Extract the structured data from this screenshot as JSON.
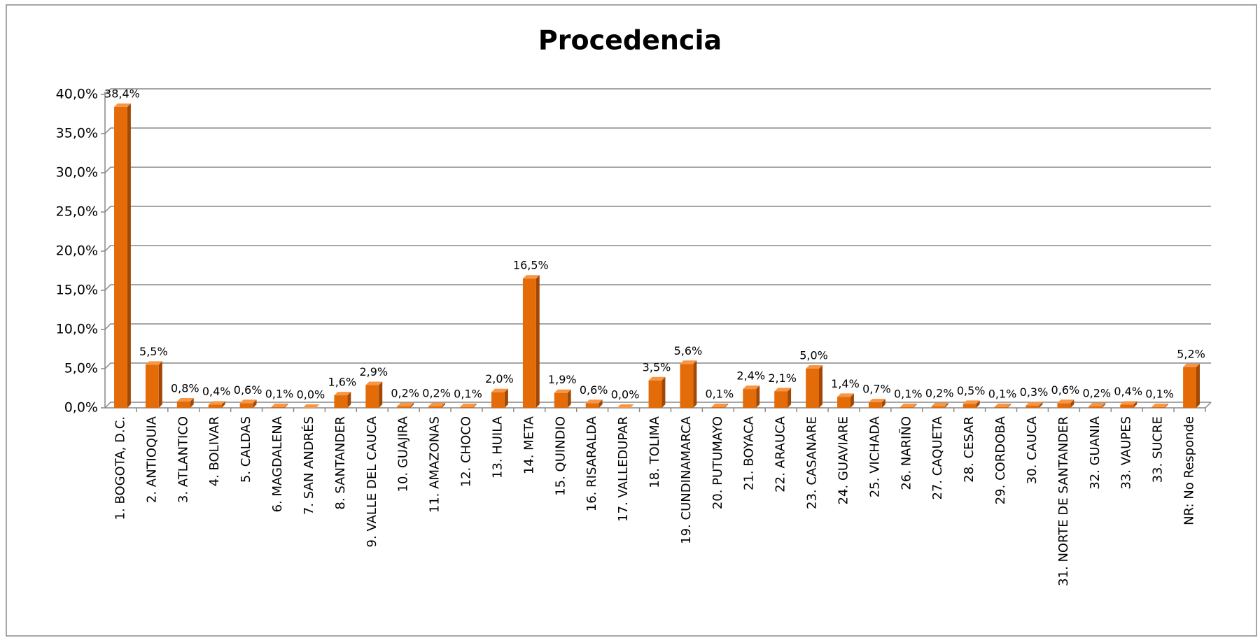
{
  "chart_data": {
    "type": "bar",
    "title": "Procedencia",
    "categories": [
      "1. BOGOTA, D.C.",
      "2. ANTIOQUIA",
      "3. ATLANTICO",
      "4. BOLIVAR",
      "5. CALDAS",
      "6. MAGDALENA",
      "7. SAN ANDRÉS",
      "8. SANTANDER",
      "9. VALLE DEL CAUCA",
      "10. GUAJIRA",
      "11. AMAZONAS",
      "12. CHOCO",
      "13. HUILA",
      "14. META",
      "15. QUINDIO",
      "16. RISARALDA",
      "17. VALLEDUPAR",
      "18. TOLIMA",
      "19. CUNDINAMARCA",
      "20. PUTUMAYO",
      "21. BOYACA",
      "22. ARAUCA",
      "23. CASANARE",
      "24. GUAVIARE",
      "25. VICHADA",
      "26. NARIÑO",
      "27. CAQUETA",
      "28. CESAR",
      "29. CORDOBA",
      "30. CAUCA",
      "31. NORTE DE SANTANDER",
      "32. GUANIA",
      "33. VAUPES",
      "33. SUCRE",
      "NR: No Responde"
    ],
    "values": [
      38.4,
      5.5,
      0.8,
      0.4,
      0.6,
      0.1,
      0.0,
      1.6,
      2.9,
      0.2,
      0.2,
      0.1,
      2.0,
      16.5,
      1.9,
      0.6,
      0.0,
      3.5,
      5.6,
      0.1,
      2.4,
      2.1,
      5.0,
      1.4,
      0.7,
      0.1,
      0.2,
      0.5,
      0.1,
      0.3,
      0.6,
      0.2,
      0.4,
      0.1,
      5.2
    ],
    "value_labels": [
      "38,4%",
      "5,5%",
      "0,8%",
      "0,4%",
      "0,6%",
      "0,1%",
      "0,0%",
      "1,6%",
      "2,9%",
      "0,2%",
      "0,2%",
      "0,1%",
      "2,0%",
      "16,5%",
      "1,9%",
      "0,6%",
      "0,0%",
      "3,5%",
      "5,6%",
      "0,1%",
      "2,4%",
      "2,1%",
      "5,0%",
      "1,4%",
      "0,7%",
      "0,1%",
      "0,2%",
      "0,5%",
      "0,1%",
      "0,3%",
      "0,6%",
      "0,2%",
      "0,4%",
      "0,1%",
      "5,2%"
    ],
    "color": "#e36c09",
    "ylim": [
      0,
      40
    ],
    "yticks": [
      {
        "value": 0,
        "label": "0,0%"
      },
      {
        "value": 5,
        "label": "5,0%"
      },
      {
        "value": 10,
        "label": "10,0%"
      },
      {
        "value": 15,
        "label": "15,0%"
      },
      {
        "value": 20,
        "label": "20,0%"
      },
      {
        "value": 25,
        "label": "25,0%"
      },
      {
        "value": 30,
        "label": "30,0%"
      },
      {
        "value": 35,
        "label": "35,0%"
      },
      {
        "value": 40,
        "label": "40,0%"
      }
    ],
    "grid": true
  }
}
